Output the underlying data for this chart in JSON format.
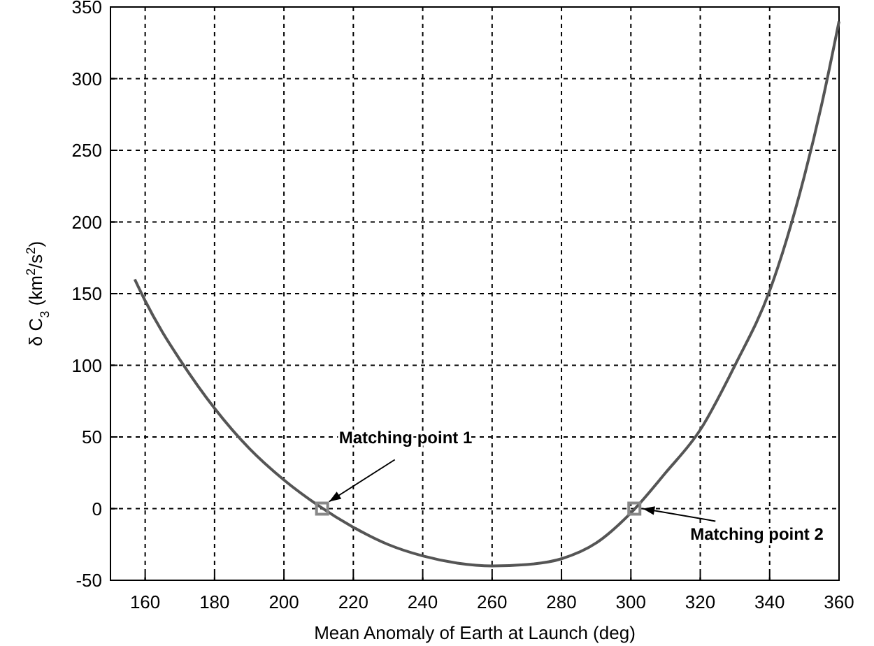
{
  "chart_data": {
    "type": "line",
    "xlabel": "Mean Anomaly of Earth at Launch (deg)",
    "ylabel": "δ C$_{3}$ (km$^{2}$/s$^{2}$)",
    "xlim": [
      150,
      360
    ],
    "xticks": [
      160,
      180,
      200,
      220,
      240,
      260,
      280,
      300,
      320,
      340,
      360
    ],
    "ylim": [
      -50,
      350
    ],
    "yticks": [
      -50,
      0,
      50,
      100,
      150,
      200,
      250,
      300,
      350
    ],
    "grid": true,
    "series": [
      {
        "color": "#555555",
        "marker": "none",
        "x": [
          157,
          160,
          165,
          170,
          180,
          190,
          200,
          210,
          220,
          230,
          240,
          250,
          260,
          270,
          280,
          290,
          300,
          310,
          320,
          330,
          340,
          350,
          355,
          360
        ],
        "values": [
          160,
          145,
          123,
          104,
          70,
          42,
          20,
          2,
          -13,
          -25,
          -33,
          -38,
          -40,
          -39,
          -35,
          -24,
          -3,
          25,
          55,
          100,
          152,
          232,
          282,
          340
        ]
      },
      {
        "type": "scatter",
        "color": "#888888",
        "marker": "square",
        "x": [
          211,
          301
        ],
        "values": [
          0,
          0
        ]
      }
    ],
    "annotations": [
      {
        "text": "Matching point 1",
        "x": 211,
        "y": 0
      },
      {
        "text": "Matching point 2",
        "x": 301,
        "y": 0
      }
    ]
  }
}
